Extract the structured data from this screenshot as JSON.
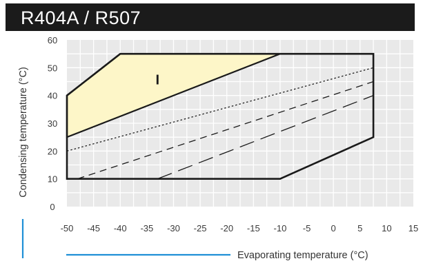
{
  "header": {
    "title": "R404A / R507",
    "background": "#1b1b1b",
    "color": "#ffffff"
  },
  "chart_data": {
    "type": "area",
    "title": "R404A / R507",
    "xlabel": "Evaporating temperature (°C)",
    "ylabel": "Condensing temperature (°C)",
    "xlim": [
      -50,
      15
    ],
    "ylim": [
      0,
      60
    ],
    "x_ticks": [
      "-50",
      "-45",
      "-40",
      "-35",
      "-30",
      "-25",
      "-20",
      "-15",
      "-10",
      "-5",
      "0",
      "5",
      "10",
      "15"
    ],
    "y_ticks": [
      "0",
      "10",
      "20",
      "30",
      "40",
      "50",
      "60"
    ],
    "grid": true,
    "colors": {
      "plot_background": "#e9e9e9",
      "grid": "#ffffff",
      "region_fill": "#fdf6c8",
      "accent": "#1e8fd6"
    },
    "envelope": [
      {
        "x": -50,
        "y": 10
      },
      {
        "x": -50,
        "y": 40
      },
      {
        "x": -40,
        "y": 55
      },
      {
        "x": 7.5,
        "y": 55
      },
      {
        "x": 7.5,
        "y": 25
      },
      {
        "x": -10,
        "y": 10
      }
    ],
    "regions": [
      {
        "name": "I",
        "points": [
          {
            "x": -50,
            "y": 25
          },
          {
            "x": -50,
            "y": 40
          },
          {
            "x": -40,
            "y": 55
          },
          {
            "x": -10,
            "y": 55
          }
        ],
        "label_at": {
          "x": -33,
          "y": 44
        }
      }
    ],
    "lines": [
      {
        "style": "dotted",
        "points": [
          {
            "x": -50,
            "y": 20
          },
          {
            "x": 7.5,
            "y": 50
          }
        ]
      },
      {
        "style": "short-dash",
        "points": [
          {
            "x": -48,
            "y": 10
          },
          {
            "x": 7.5,
            "y": 45
          }
        ]
      },
      {
        "style": "long-dash",
        "points": [
          {
            "x": -33,
            "y": 10
          },
          {
            "x": 7.5,
            "y": 40
          }
        ]
      }
    ]
  }
}
